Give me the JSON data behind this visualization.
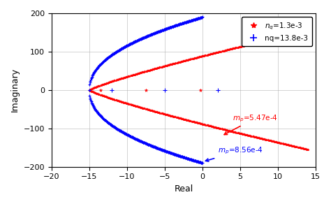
{
  "xlabel": "Real",
  "ylabel": "Imaginary",
  "xlim": [
    -20,
    15
  ],
  "ylim": [
    -200,
    200
  ],
  "xticks": [
    -20,
    -15,
    -10,
    -5,
    0,
    5,
    10,
    15
  ],
  "yticks": [
    -200,
    -100,
    0,
    100,
    200
  ],
  "legend_red_label": "$n_q$=1.3e-3",
  "legend_blue_label": "nq=13.8e-3",
  "annotation_red_text": "$m_p$=5.47e-4",
  "annotation_blue_text": "$m_p$=8.56e-4",
  "red_color": "#FF0000",
  "blue_color": "#0000FF",
  "background_color": "#FFFFFF",
  "grid_color": "#AAAAAA",
  "red_real_axis_pts": [
    -13.5,
    -7.5,
    -0.3
  ],
  "blue_real_axis_pts": [
    -12.0,
    -5.0,
    2.0
  ]
}
